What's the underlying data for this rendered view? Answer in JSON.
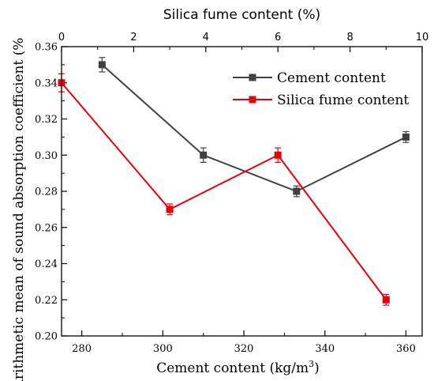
{
  "chart_data": {
    "type": "line",
    "xlabel": "Cement content (kg/m",
    "xlabel_sup": "3",
    "xlabel_end": ")",
    "x2label": "Silica fume content (%)",
    "ylabel": "Arithmetic mean of sound absorption coefficient (%",
    "xlim": [
      275,
      364
    ],
    "x2lim": [
      0,
      10
    ],
    "ylim": [
      0.2,
      0.36
    ],
    "x_ticks": [
      280,
      300,
      320,
      340,
      360
    ],
    "x2_ticks": [
      0,
      2,
      4,
      6,
      8,
      10
    ],
    "y_ticks": [
      0.2,
      0.22,
      0.24,
      0.26,
      0.28,
      0.3,
      0.32,
      0.34,
      0.36
    ],
    "x_tick_labels": [
      "280",
      "300",
      "320",
      "340",
      "360"
    ],
    "x2_tick_labels": [
      "0",
      "2",
      "4",
      "6",
      "8",
      "10"
    ],
    "y_tick_labels": [
      "0.20",
      "0.22",
      "0.24",
      "0.26",
      "0.28",
      "0.30",
      "0.32",
      "0.34",
      "0.36"
    ],
    "legend_position": "top-right",
    "series": [
      {
        "name": "Cement content",
        "axis": "bottom",
        "color": "#404040",
        "x": [
          285,
          310,
          333,
          360
        ],
        "y": [
          0.35,
          0.3,
          0.28,
          0.31
        ],
        "err": [
          0.004,
          0.004,
          0.003,
          0.003
        ]
      },
      {
        "name": "Silica fume content",
        "axis": "top",
        "color": "#e8000b",
        "x": [
          0,
          3,
          6,
          9
        ],
        "y": [
          0.34,
          0.27,
          0.3,
          0.22
        ],
        "err": [
          0.005,
          0.003,
          0.004,
          0.003
        ]
      }
    ]
  }
}
